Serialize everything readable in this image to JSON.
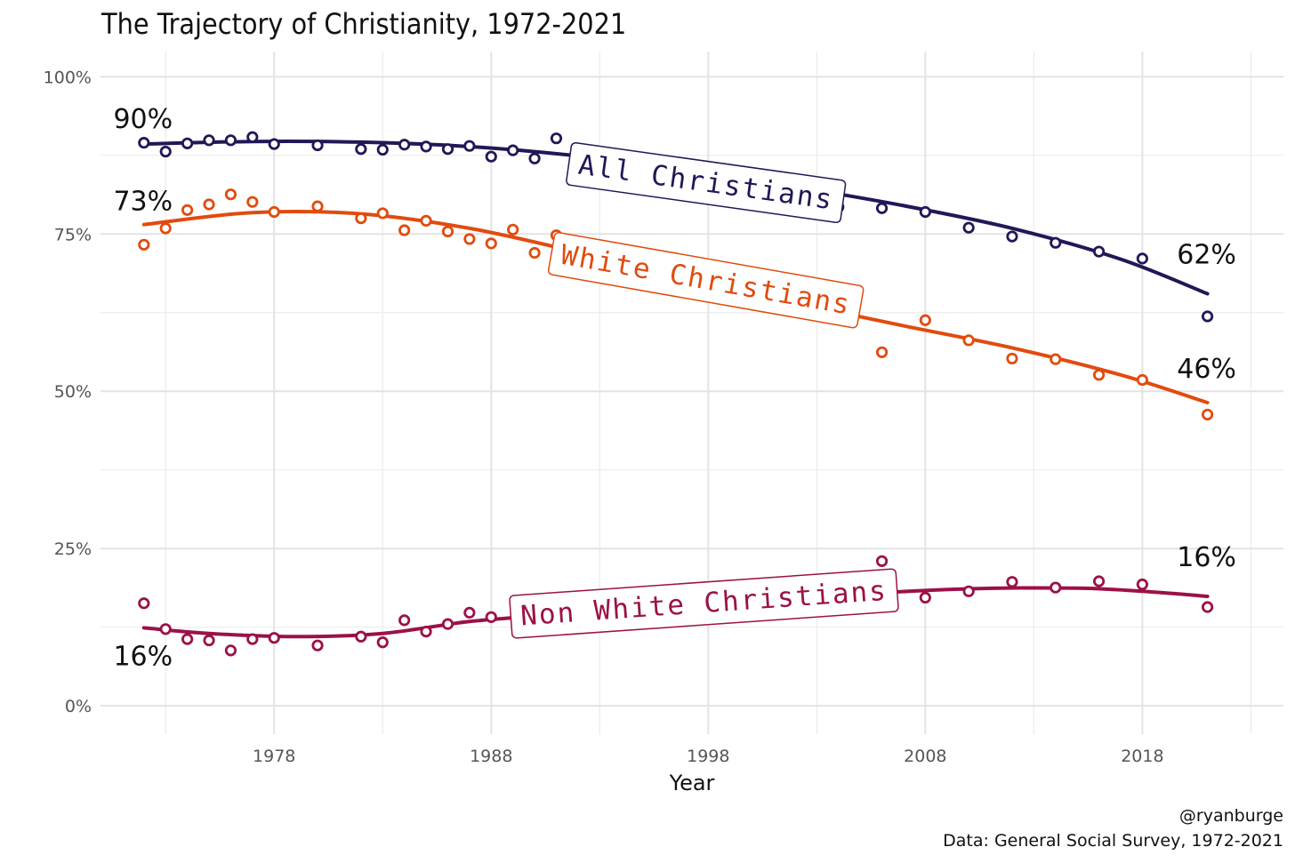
{
  "chart_data": {
    "type": "scatter",
    "title": "The Trajectory of Christianity, 1972-2021",
    "xlabel": "Year",
    "ylabel": "",
    "xlim": [
      1970,
      2024.5
    ],
    "ylim": [
      -4.5,
      104
    ],
    "x_ticks": [
      1978,
      1988,
      1998,
      2008,
      2018
    ],
    "x_tick_labels": [
      "1978",
      "1988",
      "1998",
      "2008",
      "2018"
    ],
    "y_ticks": [
      0,
      25,
      50,
      75,
      100
    ],
    "y_tick_labels": [
      "0%",
      "25%",
      "50%",
      "75%",
      "100%"
    ],
    "grid": true,
    "legend": "none",
    "caption": [
      "@ryanburge",
      "Data: General Social Survey, 1972-2021"
    ],
    "series": [
      {
        "name": "All Christians",
        "color": "#221757",
        "x": [
          1972,
          1973,
          1974,
          1975,
          1976,
          1977,
          1978,
          1980,
          1982,
          1983,
          1984,
          1985,
          1986,
          1987,
          1988,
          1989,
          1990,
          1991,
          2002,
          2004,
          2006,
          2008,
          2010,
          2012,
          2014,
          2016,
          2018,
          2021
        ],
        "y": [
          89.5,
          88.1,
          89.4,
          89.9,
          89.9,
          90.4,
          89.3,
          89.1,
          88.5,
          88.4,
          89.2,
          88.9,
          88.5,
          89.0,
          87.3,
          88.3,
          87.0,
          90.2,
          80.8,
          79.3,
          79.1,
          78.5,
          76.0,
          74.6,
          73.6,
          72.2,
          71.1,
          61.9
        ],
        "trend_x": [
          1972,
          1977,
          1982,
          1987,
          1992,
          1997,
          2002,
          2007,
          2012,
          2017,
          2021
        ],
        "trend_y": [
          89.3,
          89.7,
          89.6,
          88.9,
          87.4,
          85.2,
          82.5,
          79.5,
          75.9,
          71.0,
          65.5
        ],
        "start_label": "90%",
        "end_label": "62%",
        "label_x": 1997.9,
        "label_y": 83.3,
        "label_rotation": 8
      },
      {
        "name": "White Christians",
        "color": "#e14b0e",
        "x": [
          1972,
          1973,
          1974,
          1975,
          1976,
          1977,
          1978,
          1980,
          1982,
          1983,
          1984,
          1985,
          1986,
          1987,
          1988,
          1989,
          1990,
          1991,
          2004,
          2006,
          2008,
          2010,
          2012,
          2014,
          2016,
          2018,
          2021
        ],
        "y": [
          73.3,
          75.9,
          78.8,
          79.7,
          81.3,
          80.1,
          78.5,
          79.4,
          77.5,
          78.3,
          75.6,
          77.1,
          75.4,
          74.2,
          73.5,
          75.7,
          72.0,
          74.8,
          63.2,
          56.2,
          61.3,
          58.1,
          55.2,
          55.1,
          52.6,
          51.8,
          46.3
        ],
        "trend_x": [
          1972,
          1977,
          1982,
          1987,
          1992,
          1997,
          2002,
          2007,
          2012,
          2017,
          2021
        ],
        "trend_y": [
          76.5,
          78.4,
          78.2,
          75.9,
          72.1,
          67.9,
          64.0,
          60.4,
          56.9,
          52.6,
          48.2
        ],
        "start_label": "73%",
        "end_label": "46%",
        "label_x": 1997.9,
        "label_y": 67.8,
        "label_rotation": 10
      },
      {
        "name": "Non White Christians",
        "color": "#9b1148",
        "x": [
          1972,
          1973,
          1974,
          1975,
          1976,
          1977,
          1978,
          1980,
          1982,
          1983,
          1984,
          1985,
          1986,
          1987,
          1988,
          2006,
          2008,
          2010,
          2012,
          2014,
          2016,
          2018,
          2021
        ],
        "y": [
          16.3,
          12.2,
          10.6,
          10.4,
          8.8,
          10.6,
          10.8,
          9.6,
          11.0,
          10.1,
          13.6,
          11.8,
          13.0,
          14.8,
          14.1,
          23.0,
          17.2,
          18.2,
          19.7,
          18.8,
          19.8,
          19.3,
          15.7
        ],
        "trend_x": [
          1972,
          1975,
          1979,
          1983,
          1987,
          1991,
          1995,
          2000,
          2005,
          2010,
          2015,
          2018,
          2021
        ],
        "trend_y": [
          12.4,
          11.5,
          11.0,
          11.5,
          13.4,
          14.5,
          15.6,
          16.7,
          17.8,
          18.6,
          18.7,
          18.2,
          17.4
        ],
        "start_label": "16%",
        "end_label": "16%",
        "label_x": 1997.8,
        "label_y": 16.4,
        "label_rotation": -4
      }
    ]
  }
}
